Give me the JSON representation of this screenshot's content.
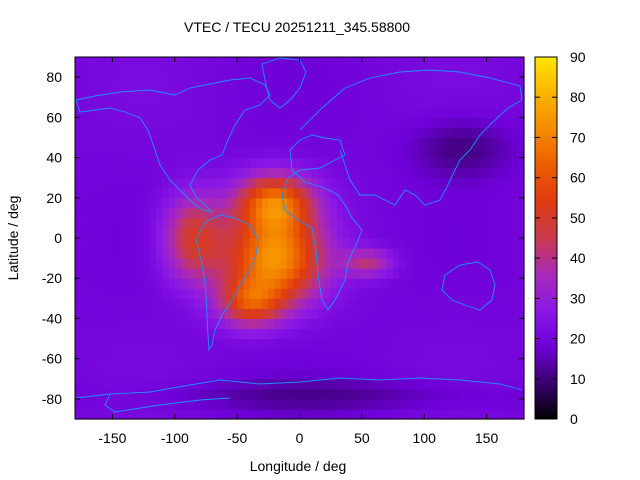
{
  "chart_data": {
    "type": "heatmap",
    "title": "VTEC / TECU 20251211_345.58800",
    "xlabel": "Longitude / deg",
    "ylabel": "Latitude / deg",
    "xlim": [
      -180,
      180
    ],
    "ylim": [
      -90,
      90
    ],
    "xticks": [
      -150,
      -100,
      -50,
      0,
      50,
      100,
      150
    ],
    "yticks": [
      -80,
      -60,
      -40,
      -20,
      0,
      20,
      40,
      60,
      80
    ],
    "colorbar": {
      "range": [
        0,
        90
      ],
      "ticks": [
        0,
        10,
        20,
        30,
        40,
        50,
        60,
        70,
        80,
        90
      ],
      "colormap": [
        "#000000",
        "#3a0070",
        "#6e00d8",
        "#8a18e6",
        "#a82ab8",
        "#c83a4e",
        "#de3a10",
        "#ec5e00",
        "#f58a00",
        "#fbb400",
        "#ffe600"
      ]
    },
    "background_level_tecu": 20,
    "features": [
      {
        "name": "main equatorial crest",
        "lon": -20,
        "lat": -10,
        "peak_tecu": 72,
        "lon_spread": 38,
        "lat_spread": 22
      },
      {
        "name": "northern crest",
        "lon": -20,
        "lat": 18,
        "peak_tecu": 62,
        "lon_spread": 30,
        "lat_spread": 14
      },
      {
        "name": "american extension",
        "lon": -85,
        "lat": 0,
        "peak_tecu": 50,
        "lon_spread": 25,
        "lat_spread": 22
      },
      {
        "name": "atlantic south lobe",
        "lon": -40,
        "lat": -32,
        "peak_tecu": 50,
        "lon_spread": 25,
        "lat_spread": 12
      },
      {
        "name": "indian ocean tongue",
        "lon": 55,
        "lat": -12,
        "peak_tecu": 40,
        "lon_spread": 20,
        "lat_spread": 7
      },
      {
        "name": "northern dark patch",
        "lon": 130,
        "lat": 45,
        "peak_tecu": 10,
        "lon_spread": 40,
        "lat_spread": 15
      },
      {
        "name": "southern dark band",
        "lon": 20,
        "lat": -78,
        "peak_tecu": 13,
        "lon_spread": 150,
        "lat_spread": 8
      }
    ]
  }
}
